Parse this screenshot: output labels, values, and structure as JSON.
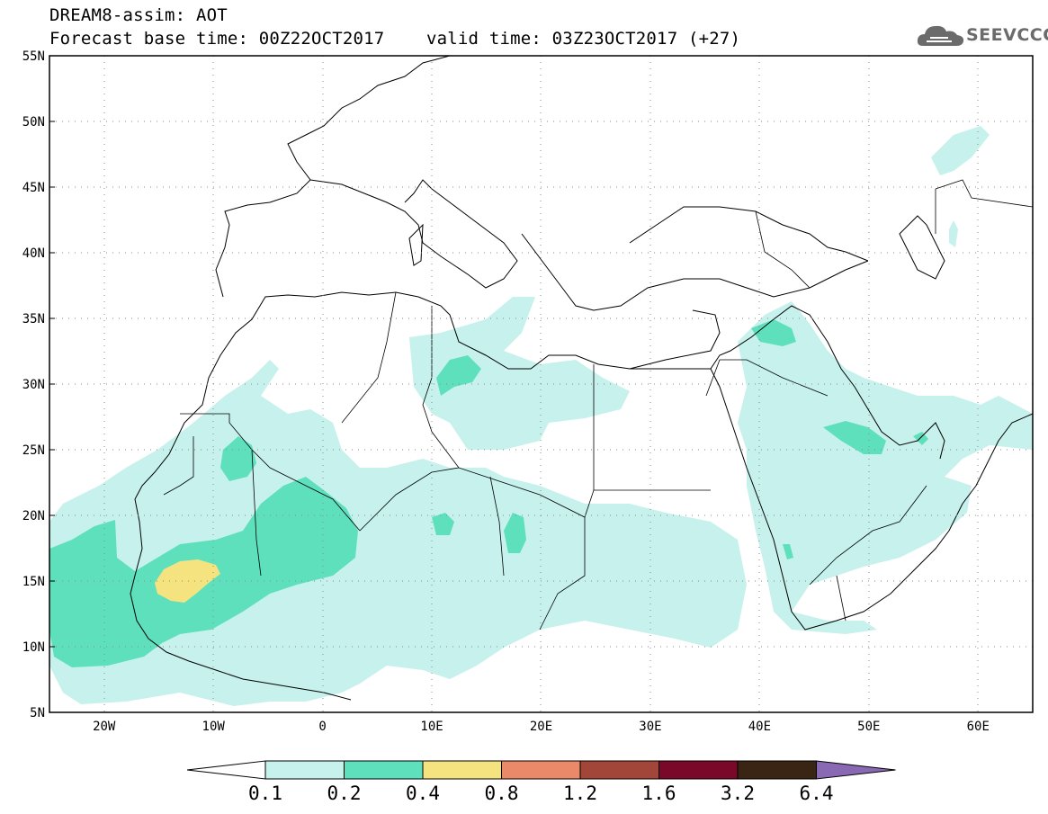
{
  "title": {
    "line1": "DREAM8-assim: AOT",
    "line2": "Forecast base time: 00Z22OCT2017    valid time: 03Z23OCT2017 (+27)"
  },
  "logo": {
    "text": "SEEVCCC",
    "icon": "cloud-icon"
  },
  "map": {
    "lat_labels": [
      "55N",
      "50N",
      "45N",
      "40N",
      "35N",
      "30N",
      "25N",
      "20N",
      "15N",
      "10N",
      "5N"
    ],
    "lon_labels": [
      "20W",
      "10W",
      "0",
      "10E",
      "20E",
      "30E",
      "40E",
      "50E",
      "60E"
    ],
    "lat_range": [
      5,
      55
    ],
    "lon_range": [
      -25,
      65
    ],
    "gridlines": "dotted"
  },
  "colorbar": {
    "ticks": [
      "0.1",
      "0.2",
      "0.4",
      "0.8",
      "1.2",
      "1.6",
      "3.2",
      "6.4"
    ],
    "colors": [
      "#c6f1ec",
      "#5ee0bd",
      "#f5e37f",
      "#e9896a",
      "#a3463a",
      "#7a0828",
      "#3a2414",
      "#8a69b4"
    ],
    "under_color": "#ffffff"
  }
}
